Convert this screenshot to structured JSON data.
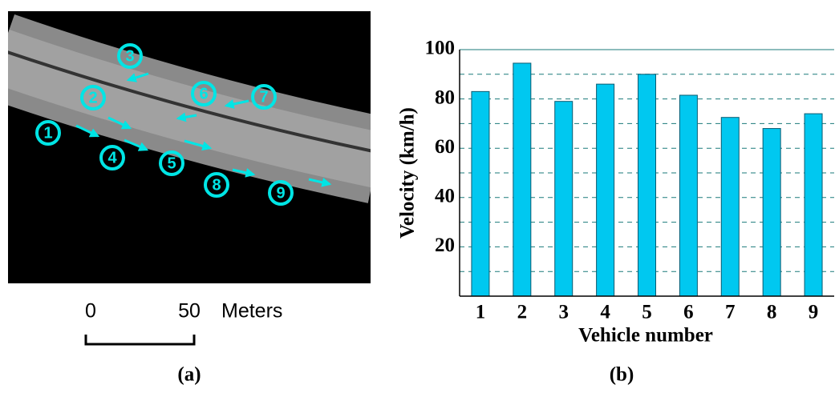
{
  "panel_a": {
    "caption": "(a)",
    "scale_start": "0",
    "scale_end": "50",
    "scale_unit": "Meters",
    "vehicles": [
      "1",
      "2",
      "3",
      "4",
      "5",
      "6",
      "7",
      "8",
      "9"
    ]
  },
  "chart_data": {
    "type": "bar",
    "caption": "(b)",
    "x_label": "Vehicle number",
    "y_label": "Velocity (km/h)",
    "categories": [
      "1",
      "2",
      "3",
      "4",
      "5",
      "6",
      "7",
      "8",
      "9"
    ],
    "values": [
      83,
      94.5,
      79,
      86,
      90,
      81.5,
      72.5,
      68,
      74
    ],
    "color": "#00c8f0",
    "ylim": [
      0,
      100
    ],
    "yticks": [
      20,
      40,
      60,
      80,
      100
    ],
    "minor_yticks": [
      10,
      30,
      50,
      70,
      90
    ],
    "grid": true
  }
}
